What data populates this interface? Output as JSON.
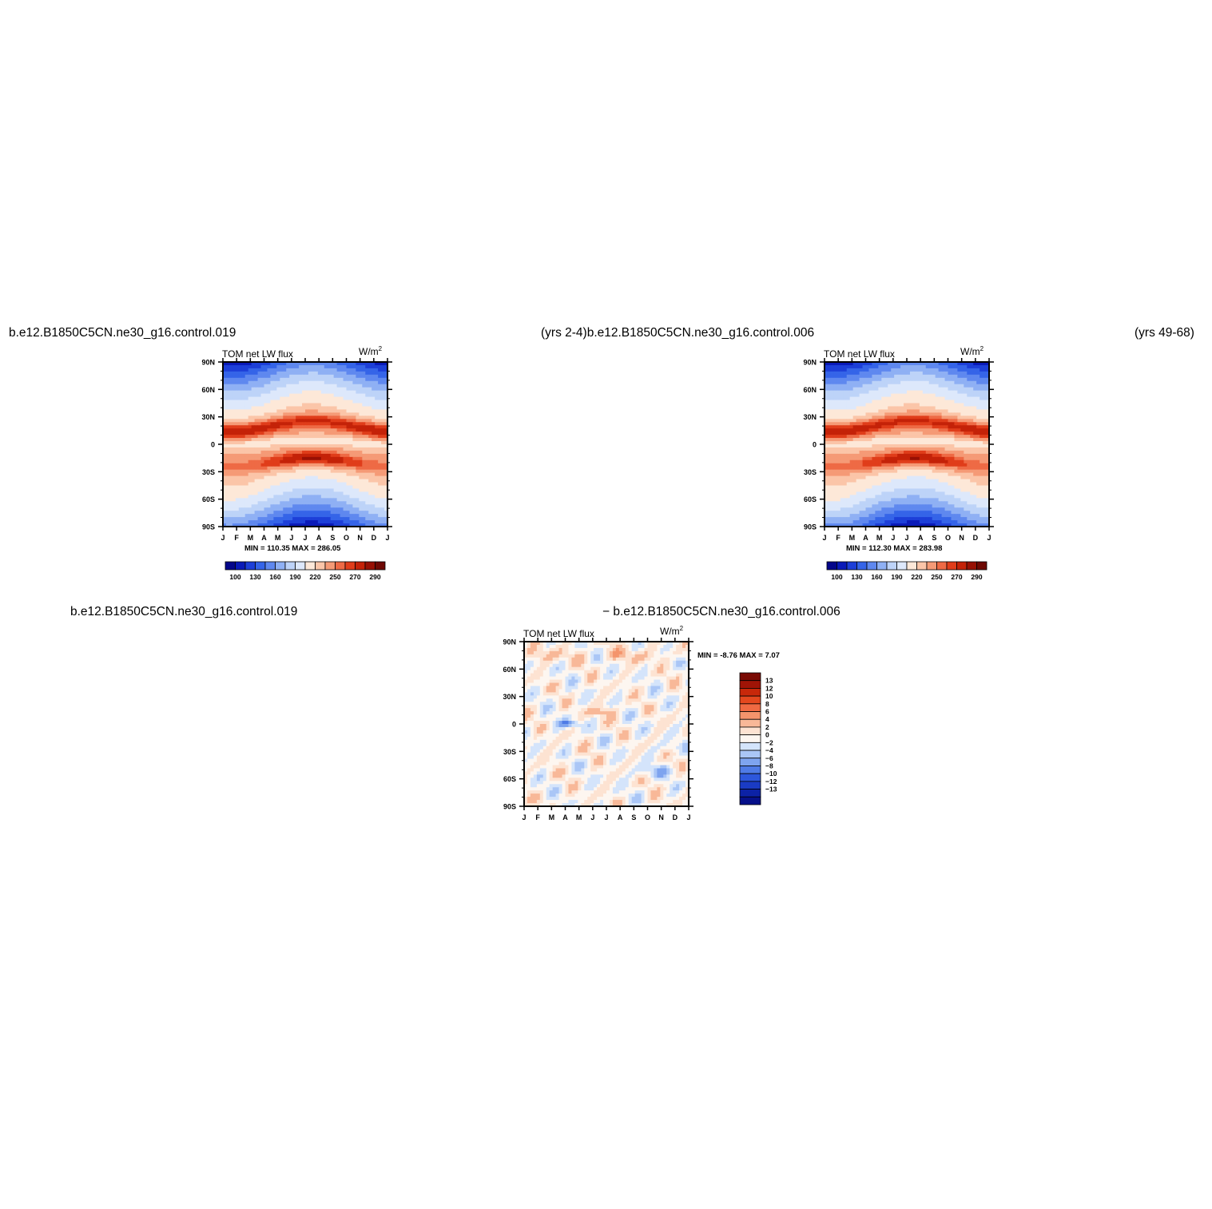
{
  "headers": {
    "top_left": "b.e12.B1850C5CN.ne30_g16.control.019",
    "top_mid": "(yrs 2-4)b.e12.B1850C5CN.ne30_g16.control.006",
    "top_right": "(yrs 49-68)",
    "bottom_left": "b.e12.B1850C5CN.ne30_g16.control.019",
    "bottom_mid": "− b.e12.B1850C5CN.ne30_g16.control.006"
  },
  "chart_data": [
    {
      "type": "heatmap",
      "title": "TOM net LW flux",
      "units": "W/m",
      "units_sup": "2",
      "x_ticks": [
        "J",
        "F",
        "M",
        "A",
        "M",
        "J",
        "J",
        "A",
        "S",
        "O",
        "N",
        "D",
        "J"
      ],
      "y_ticks": [
        "90N",
        "60N",
        "30N",
        "0",
        "30S",
        "60S",
        "90S"
      ],
      "stats": "MIN = 110.35 MAX = 286.05",
      "min": 110.35,
      "max": 286.05,
      "colorbar": {
        "orientation": "horizontal",
        "labels": [
          "100",
          "130",
          "160",
          "190",
          "220",
          "250",
          "270",
          "290"
        ],
        "colors": [
          "#04068a",
          "#0a1ab8",
          "#1d3fd8",
          "#3564e8",
          "#5f88ef",
          "#8fb0f4",
          "#bdd3f8",
          "#dde8fb",
          "#fde8d8",
          "#fbc5a8",
          "#f59a76",
          "#ee6a45",
          "#e03d1a",
          "#c42208",
          "#971004",
          "#6e0904"
        ]
      }
    },
    {
      "type": "heatmap",
      "title": "TOM net LW flux",
      "units": "W/m",
      "units_sup": "2",
      "x_ticks": [
        "J",
        "F",
        "M",
        "A",
        "M",
        "J",
        "J",
        "A",
        "S",
        "O",
        "N",
        "D",
        "J"
      ],
      "y_ticks": [
        "90N",
        "60N",
        "30N",
        "0",
        "30S",
        "60S",
        "90S"
      ],
      "stats": "MIN = 112.30 MAX = 283.98",
      "min": 112.3,
      "max": 283.98,
      "colorbar": {
        "orientation": "horizontal",
        "labels": [
          "100",
          "130",
          "160",
          "190",
          "220",
          "250",
          "270",
          "290"
        ],
        "colors": [
          "#04068a",
          "#0a1ab8",
          "#1d3fd8",
          "#3564e8",
          "#5f88ef",
          "#8fb0f4",
          "#bdd3f8",
          "#dde8fb",
          "#fde8d8",
          "#fbc5a8",
          "#f59a76",
          "#ee6a45",
          "#e03d1a",
          "#c42208",
          "#971004",
          "#6e0904"
        ]
      }
    },
    {
      "type": "heatmap",
      "title": "TOM net LW flux",
      "units": "W/m",
      "units_sup": "2",
      "x_ticks": [
        "J",
        "F",
        "M",
        "A",
        "M",
        "J",
        "J",
        "A",
        "S",
        "O",
        "N",
        "D",
        "J"
      ],
      "y_ticks": [
        "90N",
        "60N",
        "30N",
        "0",
        "30S",
        "60S",
        "90S"
      ],
      "stats": "MIN =    -8.76 MAX =     7.07",
      "min": -8.76,
      "max": 7.07,
      "colorbar": {
        "orientation": "vertical",
        "labels": [
          "13",
          "12",
          "10",
          "8",
          "6",
          "4",
          "2",
          "0",
          "−2",
          "−4",
          "−6",
          "−8",
          "−10",
          "−12",
          "−13"
        ],
        "colors": [
          "#7a0a04",
          "#a01406",
          "#c8280a",
          "#e4481e",
          "#f06a42",
          "#f4946c",
          "#f8b898",
          "#fde3d2",
          "#fdf6f0",
          "#d4e4fb",
          "#aac6f6",
          "#7ea4ef",
          "#4f7be6",
          "#2d57dc",
          "#1a3bc4",
          "#0c22a6",
          "#06108a"
        ]
      }
    }
  ]
}
